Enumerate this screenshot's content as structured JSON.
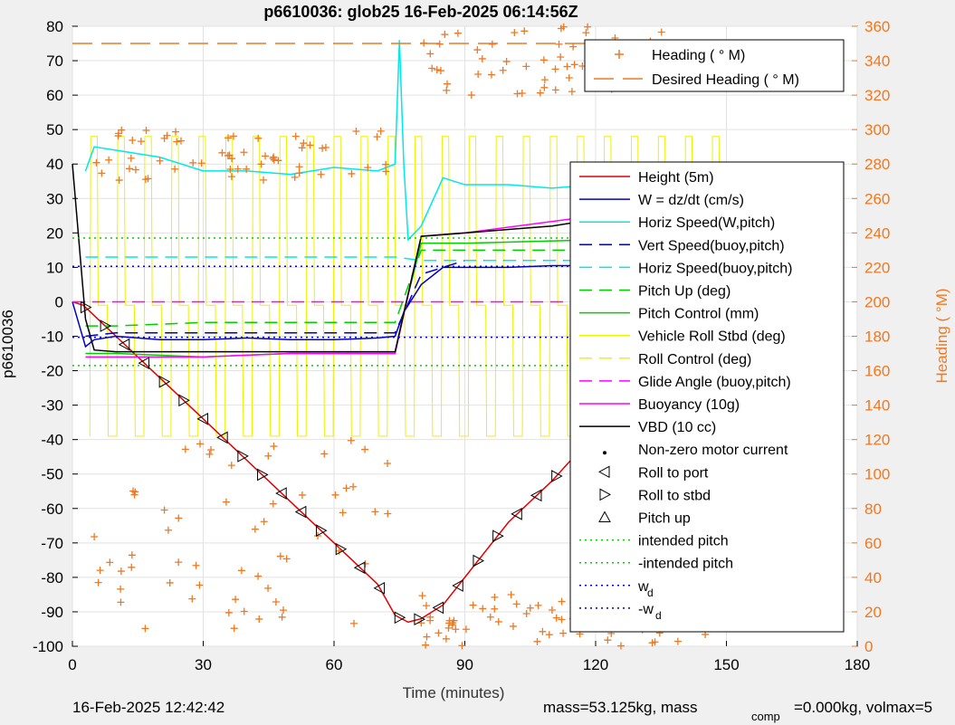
{
  "title": "p6610036: glob25 16-Feb-2025 06:14:56Z",
  "footer": {
    "timestamp": "16-Feb-2025 12:42:42",
    "mass_text": "mass=53.125kg, mass",
    "comp_sub": "comp",
    "comp_text": "=0.000kg, volmax=5"
  },
  "colors": {
    "orange": "#f07820",
    "red": "#e00000",
    "blue": "#0000c8",
    "cyan": "#00e8e8",
    "green": "#00d000",
    "yellow": "#f0f000",
    "magenta": "#ff00ff",
    "black": "#000000"
  },
  "chart_data": {
    "type": "line",
    "xlabel": "Time (minutes)",
    "ylabel": "p6610036",
    "y2label": "Heading (  °M)",
    "xlim": [
      0,
      180
    ],
    "ylim": [
      -100,
      80
    ],
    "y2lim": [
      0,
      360
    ],
    "xticks": [
      0,
      30,
      60,
      90,
      120,
      150,
      180
    ],
    "yticks": [
      80,
      70,
      60,
      50,
      40,
      30,
      20,
      10,
      0,
      -10,
      -20,
      -30,
      -40,
      -50,
      -60,
      -70,
      -80,
      -90,
      -100
    ],
    "y2ticks": [
      360,
      340,
      320,
      300,
      280,
      260,
      240,
      220,
      200,
      180,
      160,
      140,
      120,
      100,
      80,
      60,
      40,
      20,
      0
    ],
    "grid": true,
    "legend_top": [
      {
        "label": "Heading (  ° M)",
        "style": "orange-plus"
      },
      {
        "label": "Desired Heading (    ° M)",
        "style": "orange-dash"
      }
    ],
    "legend_main": [
      {
        "label": "Height (5m)",
        "style": "red"
      },
      {
        "label": "W = dz/dt (cm/s)",
        "style": "blue"
      },
      {
        "label": "Horiz Speed(W,pitch)",
        "style": "cyan"
      },
      {
        "label": "Vert Speed(buoy,pitch)",
        "style": "blue-dash"
      },
      {
        "label": "Horiz Speed(buoy,pitch)",
        "style": "cyan-dash"
      },
      {
        "label": "Pitch Up (deg)",
        "style": "green-dash"
      },
      {
        "label": "Pitch Control (mm)",
        "style": "green"
      },
      {
        "label": "Vehicle Roll Stbd (deg)",
        "style": "yellow"
      },
      {
        "label": "Roll Control (deg)",
        "style": "yellow-dash"
      },
      {
        "label": "Glide Angle (buoy,pitch)",
        "style": "magenta-dash"
      },
      {
        "label": "Buoyancy (10g)",
        "style": "magenta"
      },
      {
        "label": "VBD (10 cc)",
        "style": "black"
      },
      {
        "label": "Non-zero motor current",
        "style": "dot"
      },
      {
        "label": "Roll to port",
        "style": "tri-left"
      },
      {
        "label": "Roll to stbd",
        "style": "tri-right"
      },
      {
        "label": "Pitch up",
        "style": "tri-up"
      },
      {
        "label": "intended pitch",
        "style": "green-dot"
      },
      {
        "label": "-intended pitch",
        "style": "green-dot"
      },
      {
        "label": "w",
        "sub": "d",
        "style": "blue-dot"
      },
      {
        "label": "-w",
        "sub": "d",
        "style": "blue-dot"
      }
    ],
    "series": [
      {
        "name": "Height (5m)",
        "x": [
          0,
          2.5,
          5,
          10,
          20,
          30,
          40,
          50,
          60,
          70,
          74,
          77,
          80,
          85,
          90,
          100,
          110,
          120,
          130,
          140,
          150,
          152
        ],
        "y": [
          0,
          -1,
          -4,
          -10,
          -22,
          -34,
          -46,
          -58,
          -70,
          -82,
          -91,
          -93,
          -92,
          -88,
          -80,
          -64,
          -52,
          -38,
          -25,
          -12,
          0,
          1
        ]
      },
      {
        "name": "W = dz/dt (cm/s)",
        "x": [
          0,
          3,
          5,
          10,
          20,
          30,
          40,
          50,
          60,
          70,
          74,
          76,
          80,
          85,
          90,
          100,
          110,
          120,
          130,
          140,
          150,
          152
        ],
        "y": [
          0,
          -13,
          -11,
          -10,
          -11,
          -11,
          -10.5,
          -11,
          -11,
          -10.5,
          -10,
          -3,
          5,
          10,
          10,
          10,
          10.5,
          10.5,
          11,
          11,
          11,
          11
        ]
      },
      {
        "name": "Horiz Speed(W,pitch)",
        "x": [
          3,
          5,
          10,
          20,
          30,
          40,
          50,
          60,
          70,
          74,
          75,
          76,
          77,
          80,
          85,
          90,
          100,
          110,
          120,
          130,
          140,
          150
        ],
        "y": [
          38,
          45,
          44,
          42,
          38,
          38,
          37,
          39,
          38,
          40,
          76,
          40,
          18,
          22,
          36,
          34,
          34,
          33,
          34,
          35,
          36,
          38
        ]
      },
      {
        "name": "Vert Speed(buoy,pitch)",
        "x": [
          3,
          10,
          30,
          50,
          74,
          80,
          90,
          120,
          150
        ],
        "y": [
          -10,
          -9,
          -9,
          -9,
          -9,
          8,
          12,
          12,
          12
        ],
        "dashed": true
      },
      {
        "name": "Horiz Speed(buoy,pitch)",
        "x": [
          3,
          10,
          30,
          50,
          74,
          80,
          90,
          120,
          150
        ],
        "y": [
          13,
          13,
          13,
          13,
          13,
          12,
          12,
          12,
          12
        ],
        "dashed": true
      },
      {
        "name": "Pitch Up (deg)",
        "x": [
          3,
          10,
          30,
          50,
          74,
          76,
          80,
          90,
          120,
          150
        ],
        "y": [
          -15,
          -15,
          -16,
          -15,
          -15,
          -3,
          17,
          17,
          18,
          18
        ]
      },
      {
        "name": "Pitch Control (mm)",
        "x": [
          3,
          10,
          30,
          50,
          74,
          80,
          90,
          120,
          150
        ],
        "y": [
          -7,
          -7,
          -6,
          -6,
          -6,
          15,
          15,
          15,
          15
        ],
        "dashed": true
      },
      {
        "name": "Glide Angle (buoy,pitch)",
        "x": [
          0,
          74,
          75,
          150
        ],
        "y": [
          0,
          0,
          0,
          0
        ],
        "dashed": true
      },
      {
        "name": "Buoyancy (10g)",
        "x": [
          3,
          10,
          30,
          50,
          74,
          80,
          90,
          120,
          150
        ],
        "y": [
          -16,
          -16,
          -16,
          -15,
          -15,
          19,
          20,
          25,
          27
        ]
      },
      {
        "name": "VBD (10 cc)",
        "x": [
          0,
          2,
          3,
          5,
          10,
          74,
          80,
          90,
          100,
          110,
          120,
          130,
          140,
          150
        ],
        "y": [
          40,
          10,
          -5,
          -14,
          -14.5,
          -14.5,
          19,
          20,
          21,
          22,
          24,
          25,
          26,
          26
        ]
      },
      {
        "name": "intended pitch",
        "x": [
          0,
          150
        ],
        "y": [
          18.5,
          18.5
        ],
        "dotted": true
      },
      {
        "name": "-intended pitch",
        "x": [
          0,
          150
        ],
        "y": [
          -18.5,
          -18.5
        ],
        "dotted": true
      },
      {
        "name": "w_d",
        "x": [
          0,
          150
        ],
        "y": [
          10.3,
          10.3
        ],
        "dotted": true
      },
      {
        "name": "-w_d",
        "x": [
          0,
          150
        ],
        "y": [
          -10.3,
          -10.3
        ],
        "dotted": true
      }
    ],
    "desired_heading": {
      "x": [
        0,
        152
      ],
      "y2": [
        350,
        350
      ]
    },
    "heading_clusters": [
      {
        "x0": 5,
        "x1": 75,
        "y2lo": 270,
        "y2hi": 300
      },
      {
        "x0": 80,
        "x1": 150,
        "y2lo": 320,
        "y2hi": 360
      },
      {
        "x0": 5,
        "x1": 75,
        "y2lo": 10,
        "y2hi": 120
      },
      {
        "x0": 80,
        "x1": 150,
        "y2lo": 0,
        "y2hi": 30
      }
    ]
  }
}
